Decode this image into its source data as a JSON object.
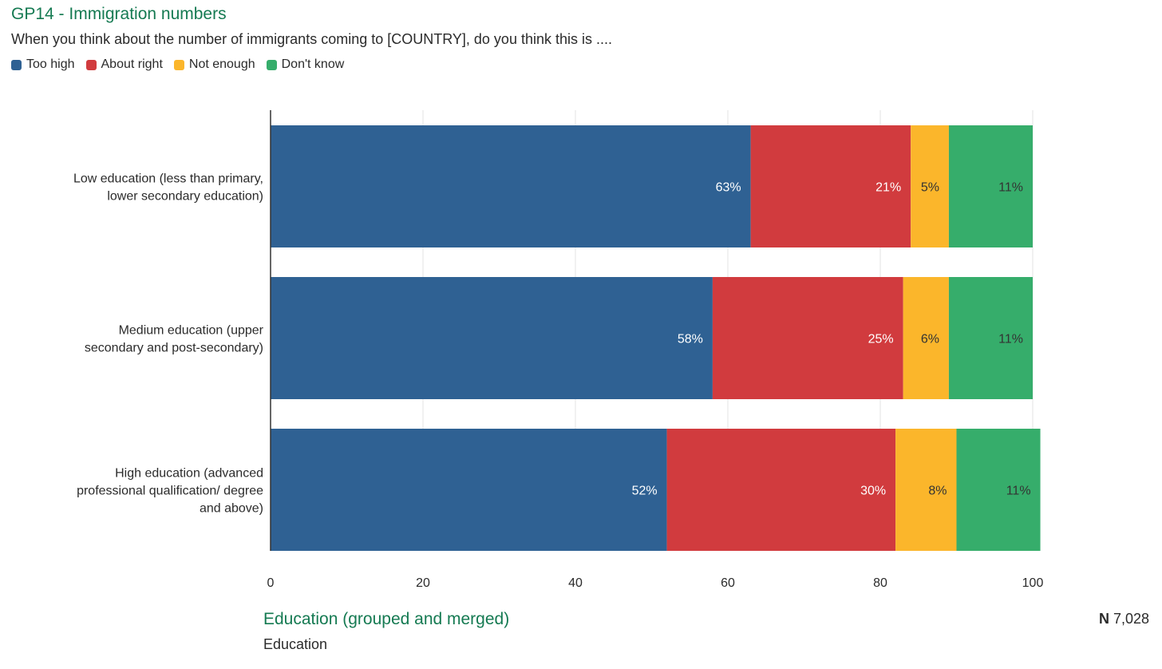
{
  "header": {
    "title": "GP14 - Immigration numbers",
    "subtitle": "When you think about the number of immigrants coming to [COUNTRY], do you think this is ...."
  },
  "legend": [
    {
      "label": "Too high",
      "color": "#2f6193"
    },
    {
      "label": "About right",
      "color": "#d13b3e"
    },
    {
      "label": "Not enough",
      "color": "#fbb62b"
    },
    {
      "label": "Don't know",
      "color": "#36ad6b"
    }
  ],
  "chart_data": {
    "type": "bar",
    "orientation": "horizontal",
    "stacked": true,
    "categories": [
      [
        "Low education (less than primary,",
        "lower secondary education)"
      ],
      [
        "Medium education (upper",
        "secondary and post-secondary)"
      ],
      [
        "High education (advanced",
        "professional qualification/ degree",
        "and above)"
      ]
    ],
    "series": [
      {
        "name": "Too high",
        "values": [
          63,
          58,
          52
        ],
        "labels": [
          "63%",
          "58%",
          "52%"
        ],
        "color": "#2f6193",
        "label_color": "#ffffff"
      },
      {
        "name": "About right",
        "values": [
          21,
          25,
          30
        ],
        "labels": [
          "21%",
          "25%",
          "30%"
        ],
        "color": "#d13b3e",
        "label_color": "#ffffff"
      },
      {
        "name": "Not enough",
        "values": [
          5,
          6,
          8
        ],
        "labels": [
          "5%",
          "6%",
          "8%"
        ],
        "color": "#fbb62b",
        "label_color": "#333333"
      },
      {
        "name": "Don't know",
        "values": [
          11,
          11,
          11
        ],
        "labels": [
          "11%",
          "11%",
          "11%"
        ],
        "color": "#36ad6b",
        "label_color": "#333333"
      }
    ],
    "xlim": [
      0,
      100
    ],
    "xticks": [
      0,
      20,
      40,
      60,
      80,
      100
    ],
    "grid": true
  },
  "footer": {
    "variable_title": "Education (grouped and merged)",
    "variable_subtitle": "Education",
    "n_prefix": "N",
    "n_value": "7,028"
  }
}
